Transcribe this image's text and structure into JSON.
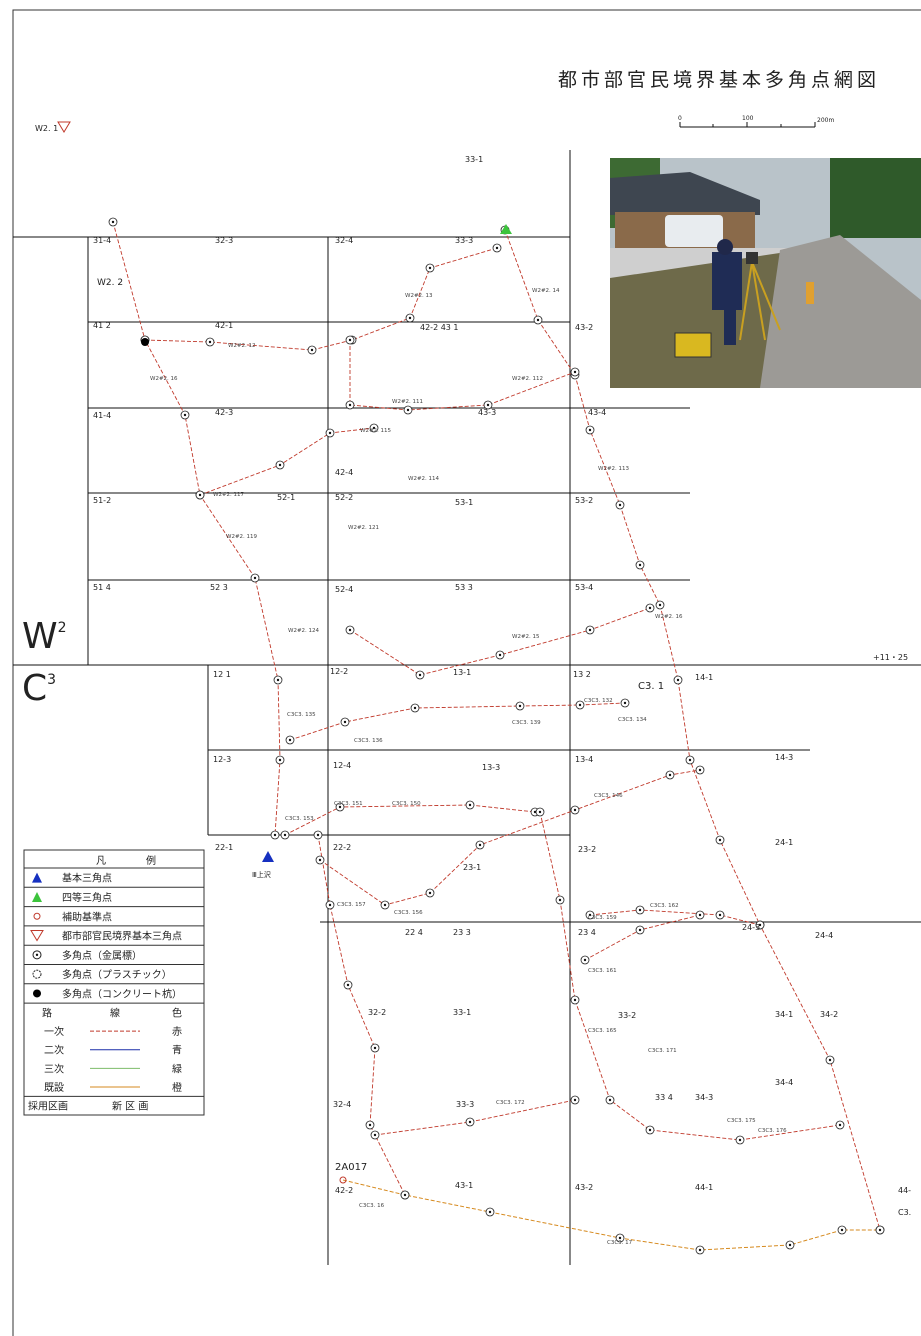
{
  "header": {
    "title": "都市部官民境界基本多角点網図",
    "scale": [
      "0",
      "100",
      "200m"
    ]
  },
  "zones": [
    {
      "letter": "W",
      "sup": "2"
    },
    {
      "letter": "C",
      "sup": "3"
    }
  ],
  "grid_labels": [
    "33-1",
    "31-4",
    "32-3",
    "32-4",
    "33-3",
    "41 2",
    "42-1",
    "42-2 43 1",
    "43-2",
    "41-4",
    "42-3",
    "42-4",
    "43-3",
    "43-4",
    "51-2",
    "52-1",
    "52-2",
    "53-1",
    "53-2",
    "51 4",
    "52 3",
    "52-4",
    "53 3",
    "53-4",
    "12 1",
    "12-2",
    "13-1",
    "13 2",
    "14-1",
    "12-3",
    "12-4",
    "13-3",
    "13-4",
    "14-3",
    "22-1",
    "22-2",
    "23-1",
    "23-2",
    "24-1",
    "22 4",
    "23 3",
    "23 4",
    "24-3",
    "24-4",
    "32-2",
    "33-1",
    "33-2",
    "34-1",
    "34-2",
    "32-4",
    "33-3",
    "33 4",
    "34-3",
    "34-4",
    "42-2",
    "43-1",
    "43-2",
    "44-1",
    "44-"
  ],
  "special_labels": [
    "W2. 1",
    "W2. 2",
    "2A017",
    "Ⅲ上沢",
    "C3. 1",
    "C3.",
    "+11・25"
  ],
  "point_labels": [
    "W2#2. 12",
    "W2#2. 16",
    "W2#2. 13",
    "W2#2. 14",
    "W2#2. 111",
    "W2#2. 112",
    "W2#2. 113",
    "W2#2. 114",
    "W2#2. 115",
    "W2#2. 117",
    "W2#2. 119",
    "W2#2. 121",
    "W2#2. 15",
    "W2#2. 16",
    "W2#2. 124",
    "C3C3. 135",
    "C3C3. 136",
    "C3C3. 139",
    "C3C3. 134",
    "C3C3. 132",
    "C3C3. 146",
    "C3C3. 150",
    "C3C3. 151",
    "C3C3. 153",
    "C3C3. 156",
    "C3C3. 157",
    "C3C3. 159",
    "C3C3. 161",
    "C3C3. 162",
    "C3C3. 165",
    "C3C3. 171",
    "C3C3. 172",
    "C3C3. 175",
    "C3C3. 176",
    "C3C3. 16",
    "C3C3. 17"
  ],
  "legend": {
    "title": [
      "凡",
      "例"
    ],
    "symbols": [
      "基本三角点",
      "四等三角点",
      "補助基準点",
      "都市部官民境界基本三角点",
      "多角点（金属標）",
      "多角点（プラスチック）",
      "多角点（コンクリート杭）"
    ],
    "table": {
      "header": [
        "路",
        "線",
        "色"
      ],
      "rows": [
        [
          "一次",
          "赤"
        ],
        [
          "二次",
          "青"
        ],
        [
          "三次",
          "緑"
        ],
        [
          "既設",
          "橙"
        ]
      ],
      "footer": [
        "採用区画",
        "新 区 画"
      ]
    }
  }
}
